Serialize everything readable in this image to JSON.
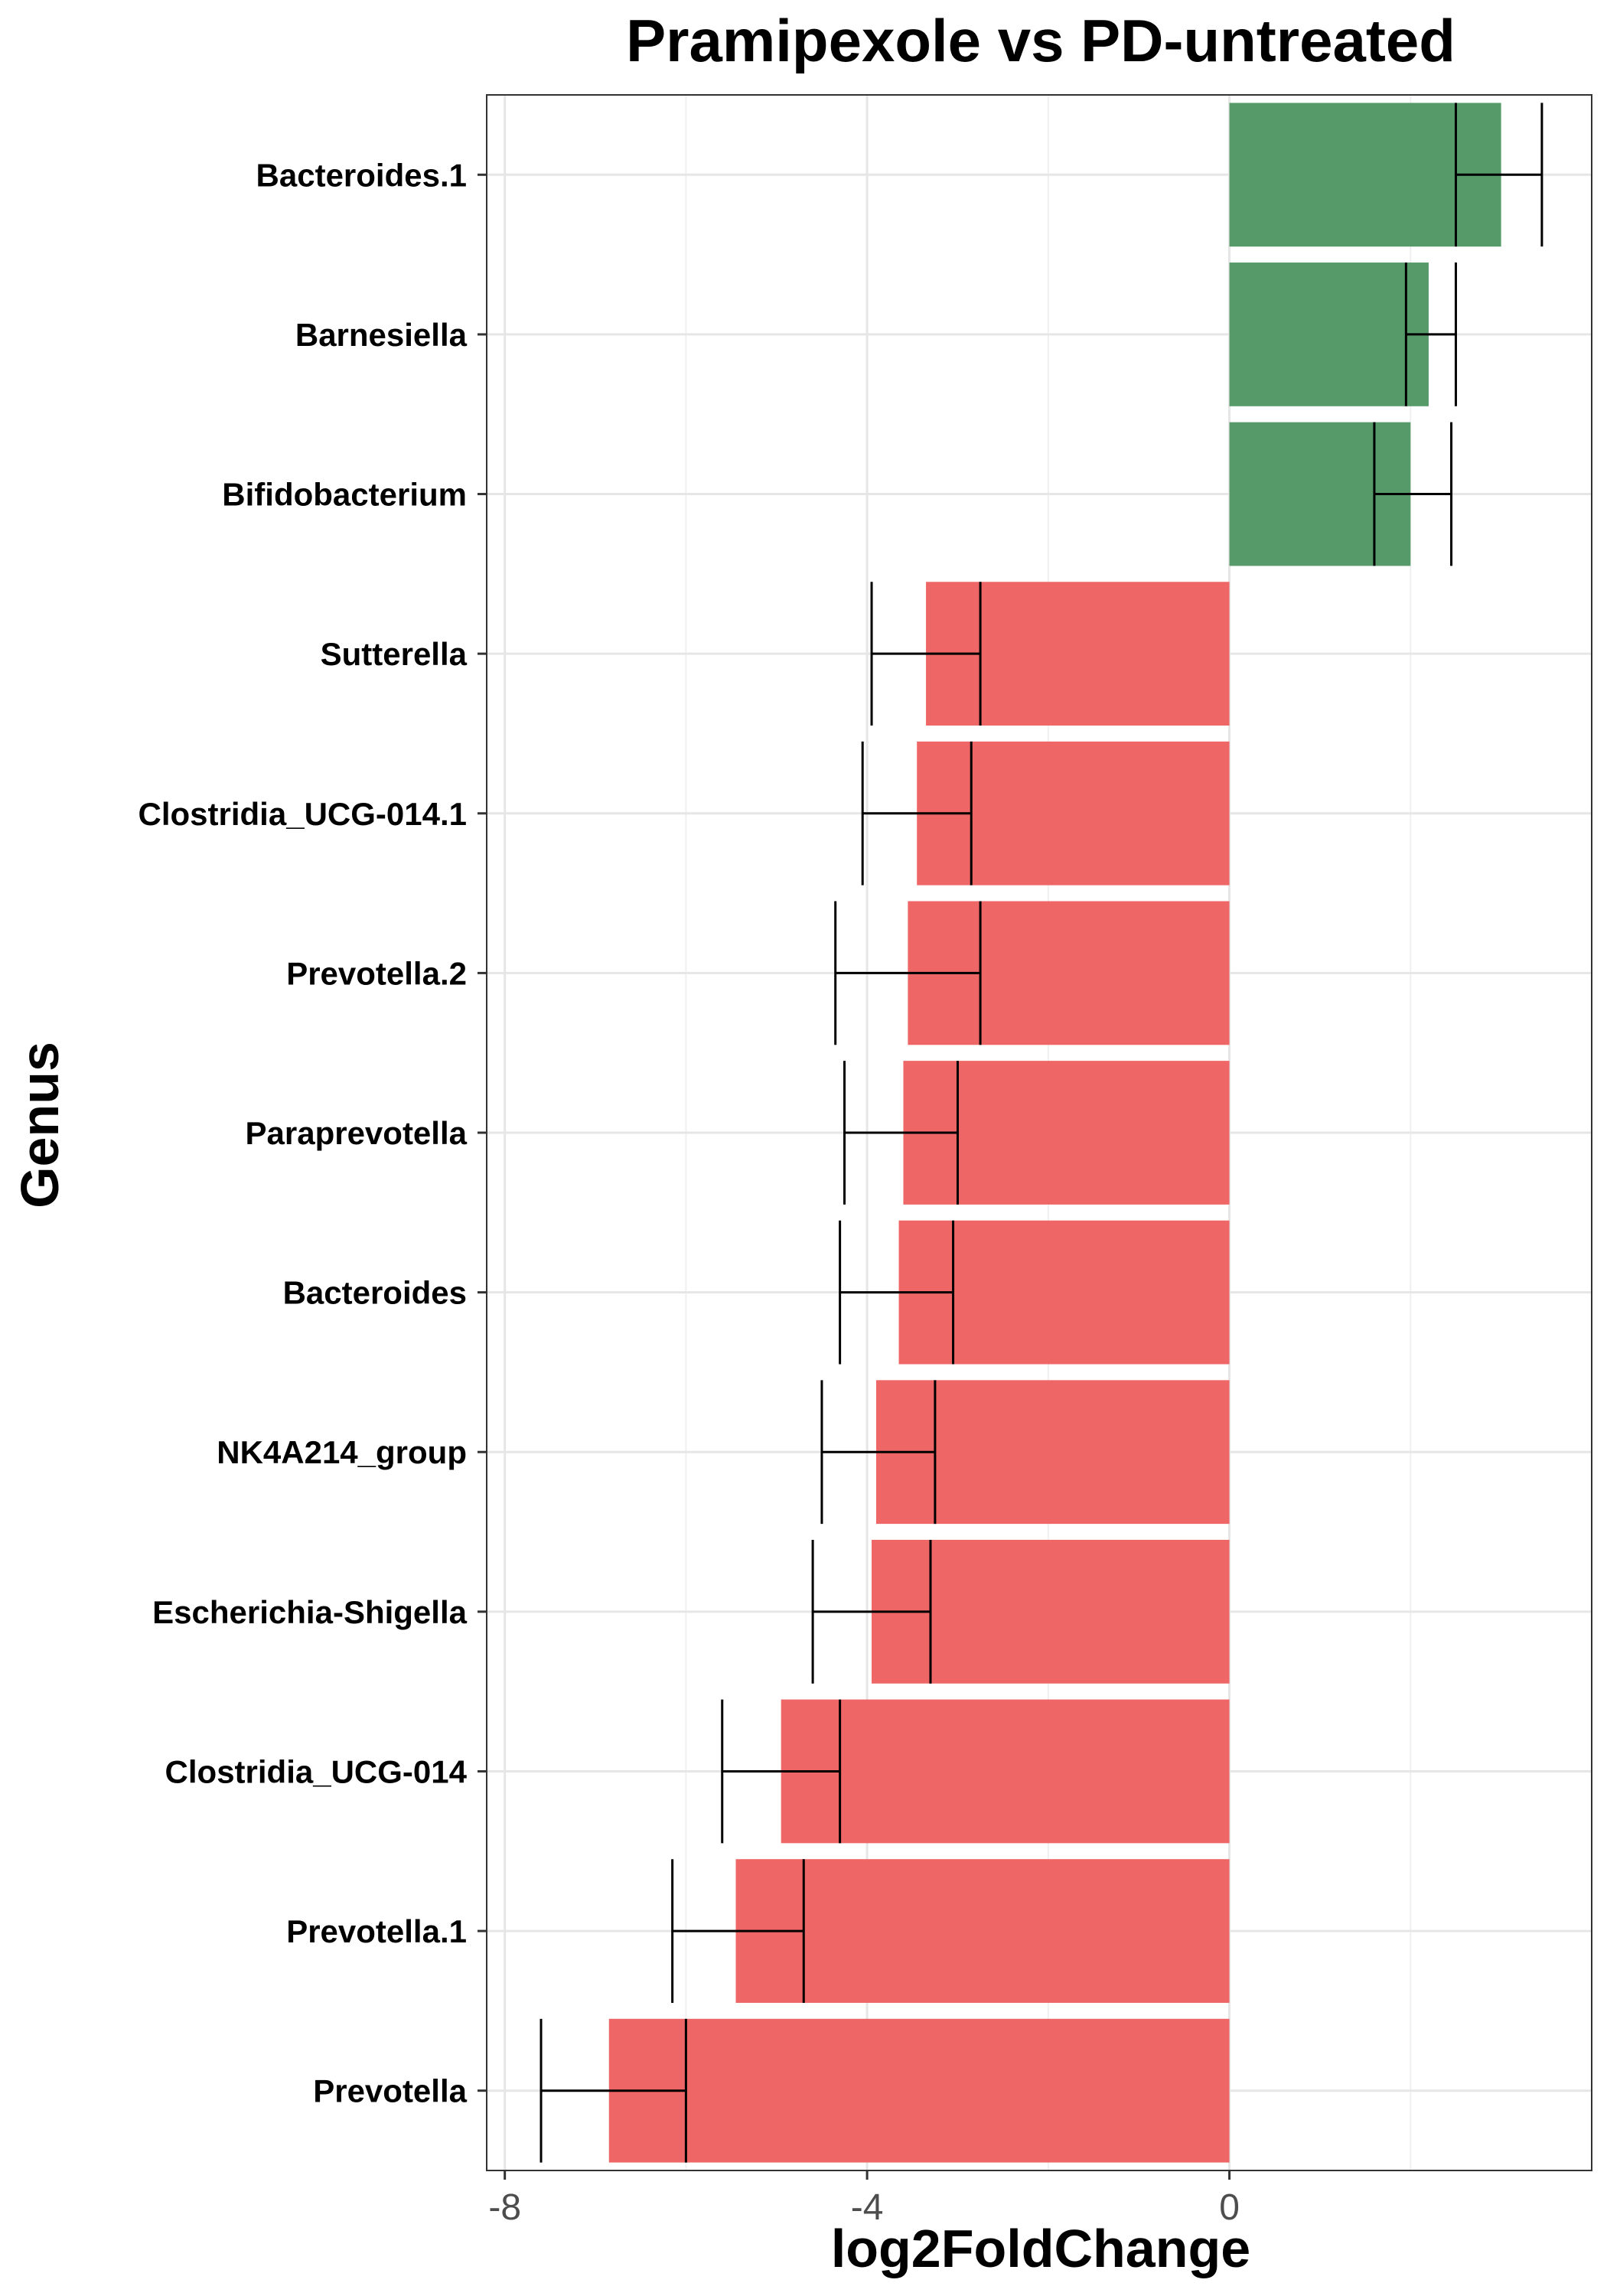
{
  "chart_data": {
    "type": "bar",
    "orientation": "horizontal",
    "title": "Pramipexole vs PD-untreated",
    "xlabel": "log2FoldChange",
    "ylabel": "Genus",
    "xlim": [
      -8.2,
      4.0
    ],
    "xticks": [
      -8,
      -4,
      0
    ],
    "xtick_labels": [
      "-8",
      "-4",
      "0"
    ],
    "minor_gridlines": [
      -6,
      -2,
      2
    ],
    "grid": true,
    "colors": {
      "positive": "#569A69",
      "negative": "#EE6666"
    },
    "categories": [
      "Bacteroides.1",
      "Barnesiella",
      "Bifidobacterium",
      "Sutterella",
      "Clostridia_UCG-014.1",
      "Prevotella.2",
      "Paraprevotella",
      "Bacteroides",
      "NK4A214_group",
      "Escherichia-Shigella",
      "Clostridia_UCG-014",
      "Prevotella.1",
      "Prevotella"
    ],
    "values": [
      3.0,
      2.2,
      2.0,
      -3.35,
      -3.45,
      -3.55,
      -3.6,
      -3.65,
      -3.9,
      -3.95,
      -4.95,
      -5.45,
      -6.85
    ],
    "error_low": [
      2.5,
      1.95,
      1.6,
      -3.95,
      -4.05,
      -4.35,
      -4.25,
      -4.3,
      -4.5,
      -4.6,
      -5.6,
      -6.15,
      -7.6
    ],
    "error_high": [
      3.45,
      2.5,
      2.45,
      -2.75,
      -2.85,
      -2.75,
      -3.0,
      -3.05,
      -3.25,
      -3.3,
      -4.3,
      -4.7,
      -6.0
    ]
  }
}
